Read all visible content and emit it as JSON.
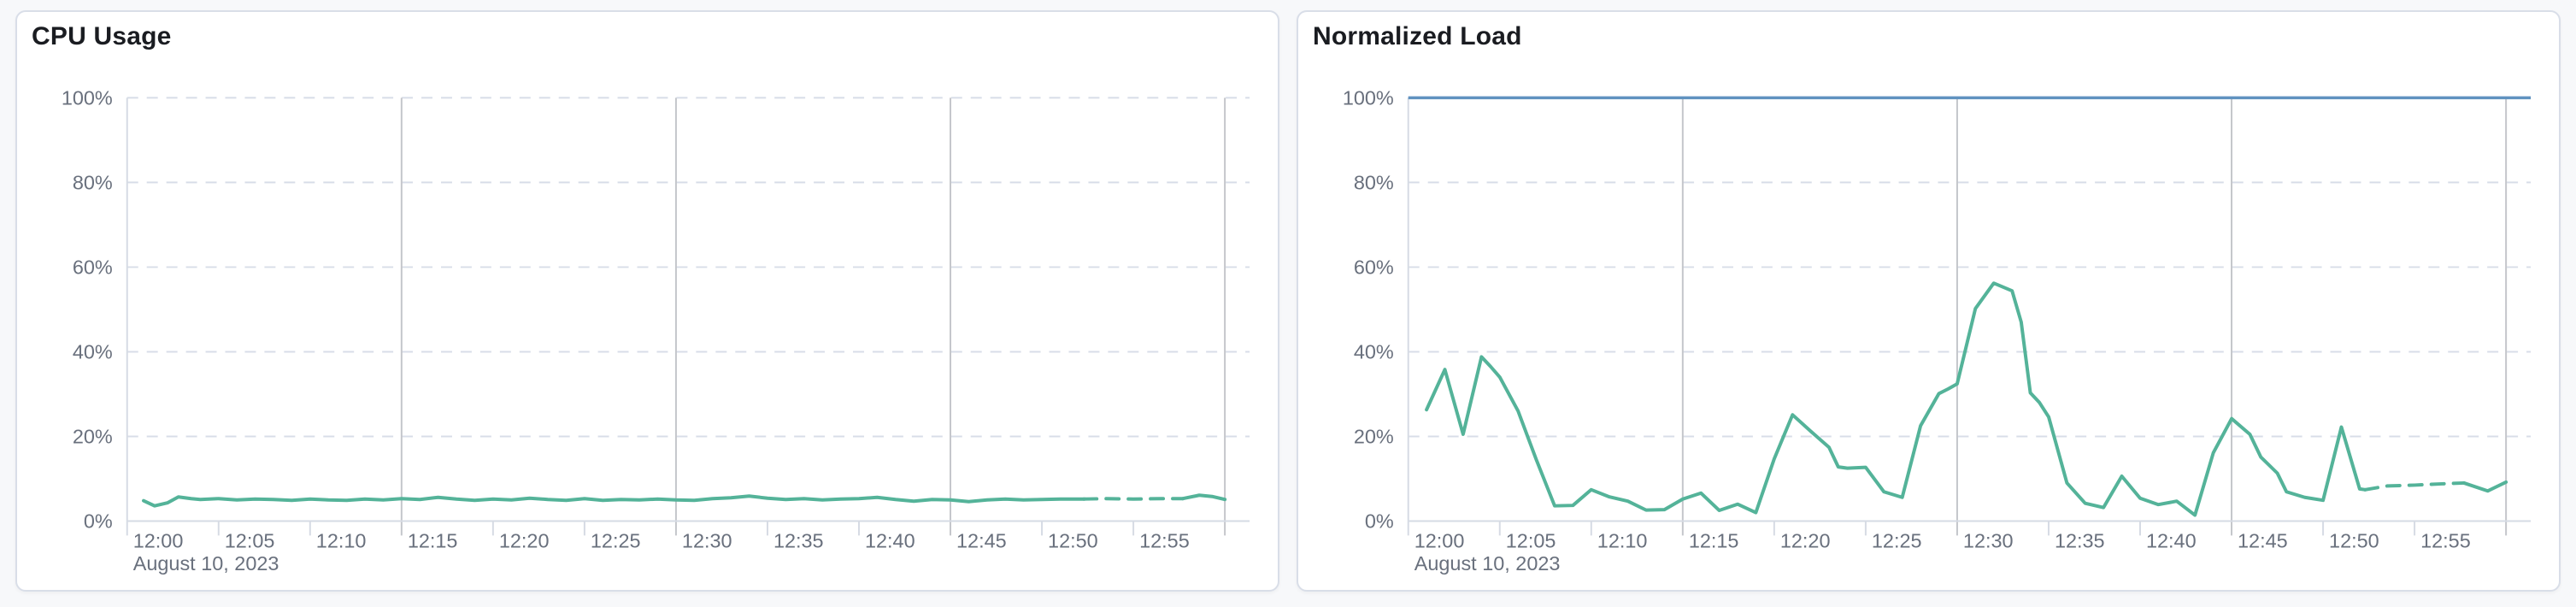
{
  "theme": {
    "page_bg": "#F7F8FA",
    "card_bg": "#FFFFFF",
    "card_border": "#D9DEE8",
    "title_color": "#1A1C21",
    "axis_label_color": "#69707D",
    "grid_dashed_color": "#D8DDE8",
    "grid_15min_color": "#C4C6CB",
    "axis_line_color": "#D6DBE4",
    "line_green": "#54B399",
    "limit_blue": "#6092C0"
  },
  "chart_data": [
    {
      "type": "line",
      "title": "CPU Usage",
      "x_axis": {
        "date_label": "August 10, 2023",
        "tick_minutes": [
          0,
          5,
          10,
          15,
          20,
          25,
          30,
          35,
          40,
          45,
          50,
          55
        ],
        "tick_labels": [
          "12:00",
          "12:05",
          "12:10",
          "12:15",
          "12:20",
          "12:25",
          "12:30",
          "12:35",
          "12:40",
          "12:45",
          "12:50",
          "12:55"
        ],
        "range_minutes": [
          0,
          60
        ],
        "major_gridline_minutes": [
          15,
          30,
          45,
          60
        ]
      },
      "y_axis": {
        "unit": "%",
        "range": [
          0,
          100
        ],
        "tick_values": [
          0,
          20,
          40,
          60,
          80,
          100
        ],
        "tick_labels": [
          "0%",
          "20%",
          "40%",
          "60%",
          "80%",
          "100%"
        ]
      },
      "grid": {
        "horizontal": "dashed",
        "vertical_major_every_min": 15
      },
      "legend": "none",
      "series": [
        {
          "name": "cpu-usage",
          "type": "line",
          "color": "#54B399",
          "stroke_width": 4,
          "dashed_between_minutes": [
            52.3,
            57.7
          ],
          "points": [
            [
              0.9,
              4.8
            ],
            [
              1.5,
              3.6
            ],
            [
              2.2,
              4.3
            ],
            [
              2.8,
              5.7
            ],
            [
              3.5,
              5.3
            ],
            [
              4,
              5.1
            ],
            [
              5,
              5.3
            ],
            [
              6,
              5.0
            ],
            [
              7,
              5.2
            ],
            [
              8,
              5.1
            ],
            [
              9,
              4.9
            ],
            [
              10,
              5.2
            ],
            [
              11,
              5.0
            ],
            [
              12,
              4.9
            ],
            [
              13,
              5.2
            ],
            [
              14,
              5.0
            ],
            [
              15,
              5.3
            ],
            [
              16,
              5.1
            ],
            [
              17,
              5.6
            ],
            [
              18,
              5.2
            ],
            [
              19,
              4.9
            ],
            [
              20,
              5.2
            ],
            [
              21,
              5.0
            ],
            [
              22,
              5.4
            ],
            [
              23,
              5.1
            ],
            [
              24,
              4.9
            ],
            [
              25,
              5.3
            ],
            [
              26,
              4.9
            ],
            [
              27,
              5.1
            ],
            [
              28,
              5.0
            ],
            [
              29,
              5.2
            ],
            [
              30,
              5.0
            ],
            [
              31,
              4.9
            ],
            [
              32,
              5.3
            ],
            [
              33,
              5.5
            ],
            [
              34,
              5.9
            ],
            [
              35,
              5.4
            ],
            [
              36,
              5.1
            ],
            [
              37,
              5.3
            ],
            [
              38,
              5.0
            ],
            [
              39,
              5.2
            ],
            [
              40,
              5.3
            ],
            [
              41,
              5.6
            ],
            [
              42,
              5.1
            ],
            [
              43,
              4.7
            ],
            [
              44,
              5.1
            ],
            [
              45,
              5.0
            ],
            [
              46,
              4.6
            ],
            [
              47,
              5.0
            ],
            [
              48,
              5.2
            ],
            [
              49,
              5.0
            ],
            [
              50,
              5.1
            ],
            [
              51,
              5.2
            ],
            [
              52.3,
              5.2
            ],
            [
              53.5,
              5.3
            ],
            [
              55,
              5.2
            ],
            [
              56.5,
              5.3
            ],
            [
              57.7,
              5.3
            ],
            [
              58.6,
              6.1
            ],
            [
              59.3,
              5.8
            ],
            [
              60,
              5.1
            ]
          ]
        }
      ]
    },
    {
      "type": "line",
      "title": "Normalized Load",
      "x_axis": {
        "date_label": "August 10, 2023",
        "tick_minutes": [
          0,
          5,
          10,
          15,
          20,
          25,
          30,
          35,
          40,
          45,
          50,
          55
        ],
        "tick_labels": [
          "12:00",
          "12:05",
          "12:10",
          "12:15",
          "12:20",
          "12:25",
          "12:30",
          "12:35",
          "12:40",
          "12:45",
          "12:50",
          "12:55"
        ],
        "range_minutes": [
          0,
          60
        ],
        "major_gridline_minutes": [
          15,
          30,
          45,
          60
        ]
      },
      "y_axis": {
        "unit": "%",
        "range": [
          0,
          100
        ],
        "tick_values": [
          0,
          20,
          40,
          60,
          80,
          100
        ],
        "tick_labels": [
          "0%",
          "20%",
          "40%",
          "60%",
          "80%",
          "100%"
        ]
      },
      "grid": {
        "horizontal": "dashed",
        "vertical_major_every_min": 15
      },
      "legend": "none",
      "series": [
        {
          "name": "normalized-load",
          "type": "line",
          "color": "#54B399",
          "stroke_width": 4,
          "dashed_between_minutes": [
            52.3,
            57.7
          ],
          "points": [
            [
              1,
              26.3
            ],
            [
              2,
              35.8
            ],
            [
              3,
              20.5
            ],
            [
              4,
              38.8
            ],
            [
              4.5,
              36.5
            ],
            [
              5,
              34.0
            ],
            [
              6,
              26.0
            ],
            [
              7,
              14.5
            ],
            [
              8,
              3.6
            ],
            [
              9,
              3.7
            ],
            [
              10,
              7.4
            ],
            [
              11,
              5.7
            ],
            [
              12,
              4.7
            ],
            [
              13,
              2.6
            ],
            [
              14,
              2.7
            ],
            [
              15,
              5.2
            ],
            [
              16,
              6.6
            ],
            [
              17,
              2.5
            ],
            [
              18,
              4.0
            ],
            [
              19,
              2.0
            ],
            [
              20,
              14.7
            ],
            [
              21,
              25.1
            ],
            [
              22,
              21.2
            ],
            [
              23,
              17.4
            ],
            [
              23.5,
              12.8
            ],
            [
              24,
              12.5
            ],
            [
              25,
              12.7
            ],
            [
              26,
              6.9
            ],
            [
              27,
              5.6
            ],
            [
              28,
              22.5
            ],
            [
              29,
              30.1
            ],
            [
              29.5,
              31.2
            ],
            [
              30,
              32.4
            ],
            [
              31,
              50.2
            ],
            [
              32,
              56.2
            ],
            [
              33,
              54.4
            ],
            [
              33.5,
              47.0
            ],
            [
              34,
              30.3
            ],
            [
              34.5,
              28.0
            ],
            [
              35,
              24.6
            ],
            [
              36,
              9.0
            ],
            [
              37,
              4.2
            ],
            [
              38,
              3.2
            ],
            [
              39,
              10.6
            ],
            [
              40,
              5.4
            ],
            [
              41,
              3.9
            ],
            [
              42,
              4.7
            ],
            [
              43,
              1.4
            ],
            [
              44,
              16.1
            ],
            [
              45,
              24.2
            ],
            [
              46,
              20.5
            ],
            [
              46.6,
              15.1
            ],
            [
              47.5,
              11.3
            ],
            [
              48,
              6.9
            ],
            [
              49,
              5.6
            ],
            [
              50,
              4.9
            ],
            [
              51,
              22.2
            ],
            [
              52,
              7.6
            ],
            [
              52.3,
              7.4
            ],
            [
              53.5,
              8.3
            ],
            [
              55,
              8.5
            ],
            [
              56.5,
              8.8
            ],
            [
              57.7,
              9.0
            ],
            [
              59,
              7.1
            ],
            [
              60,
              9.2
            ]
          ]
        },
        {
          "name": "limit",
          "type": "line",
          "color": "#6092C0",
          "stroke_width": 3.5,
          "constant_value": 100
        }
      ]
    }
  ]
}
